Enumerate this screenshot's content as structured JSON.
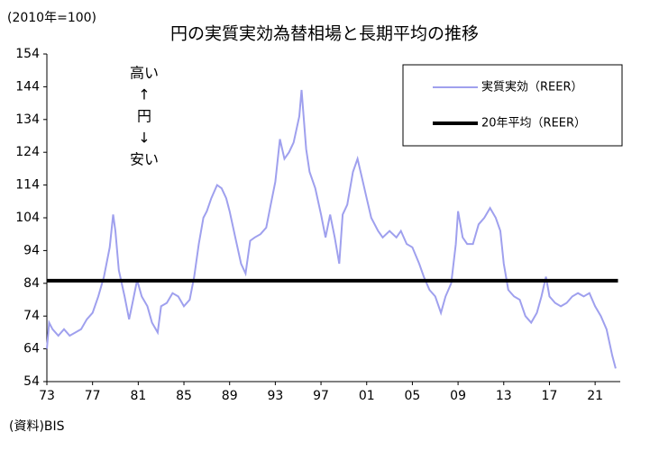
{
  "chart_data": {
    "type": "line",
    "title": "円の実質実効為替相場と長期平均の推移",
    "subtitle": "(2010年=100)",
    "source": "(資料)BIS",
    "annotations": [
      "高い",
      "↑",
      "円",
      "↓",
      "安い"
    ],
    "legend": "upper right",
    "xlim": [
      1973,
      2023.2
    ],
    "xticks": [
      {
        "value": 1973,
        "label": "73"
      },
      {
        "value": 1977,
        "label": "77"
      },
      {
        "value": 1981,
        "label": "81"
      },
      {
        "value": 1985,
        "label": "85"
      },
      {
        "value": 1989,
        "label": "89"
      },
      {
        "value": 1993,
        "label": "93"
      },
      {
        "value": 1997,
        "label": "97"
      },
      {
        "value": 2001,
        "label": "01"
      },
      {
        "value": 2005,
        "label": "05"
      },
      {
        "value": 2009,
        "label": "09"
      },
      {
        "value": 2013,
        "label": "13"
      },
      {
        "value": 2017,
        "label": "17"
      },
      {
        "value": 2021,
        "label": "21"
      }
    ],
    "ylim": [
      54,
      154
    ],
    "yticks": [
      54,
      64,
      74,
      84,
      94,
      104,
      114,
      124,
      134,
      144,
      154
    ],
    "series": [
      {
        "name": "実質実効（REER）",
        "color": "#9fa0ee",
        "width": 2,
        "x": [
          1973.0,
          1973.2,
          1973.5,
          1974,
          1974.5,
          1975,
          1975.5,
          1976,
          1976.5,
          1977,
          1977.5,
          1978,
          1978.5,
          1978.8,
          1979,
          1979.3,
          1979.8,
          1980.2,
          1980.5,
          1980.9,
          1981.3,
          1981.8,
          1982.2,
          1982.7,
          1983,
          1983.5,
          1984,
          1984.5,
          1985,
          1985.5,
          1985.9,
          1986.3,
          1986.7,
          1987,
          1987.4,
          1987.9,
          1988.3,
          1988.7,
          1989,
          1989.5,
          1990,
          1990.4,
          1990.8,
          1991.2,
          1991.7,
          1992.2,
          1992.6,
          1993,
          1993.4,
          1993.8,
          1994.2,
          1994.6,
          1995.1,
          1995.3,
          1995.7,
          1996,
          1996.5,
          1997,
          1997.4,
          1997.8,
          1998.2,
          1998.6,
          1998.9,
          1999.3,
          1999.8,
          2000.2,
          2000.6,
          2001,
          2001.4,
          2002,
          2002.4,
          2003,
          2003.6,
          2004,
          2004.5,
          2005,
          2005.6,
          2006,
          2006.5,
          2007,
          2007.5,
          2007.9,
          2008.4,
          2008.8,
          2009,
          2009.4,
          2009.8,
          2010.3,
          2010.8,
          2011.3,
          2011.8,
          2012.3,
          2012.7,
          2013,
          2013.4,
          2013.9,
          2014.4,
          2014.9,
          2015.4,
          2015.9,
          2016.3,
          2016.7,
          2017,
          2017.5,
          2018,
          2018.5,
          2019,
          2019.5,
          2020,
          2020.5,
          2021,
          2021.5,
          2022,
          2022.5,
          2022.8
        ],
        "values": [
          64,
          72,
          70,
          68,
          70,
          68,
          69,
          70,
          73,
          75,
          80,
          86,
          95,
          105,
          100,
          88,
          80,
          73,
          78,
          85,
          80,
          77,
          72,
          69,
          77,
          78,
          81,
          80,
          77,
          79,
          86,
          96,
          104,
          106,
          110,
          114,
          113,
          110,
          106,
          98,
          90,
          87,
          97,
          98,
          99,
          101,
          108,
          115,
          128,
          122,
          124,
          127,
          135,
          143,
          125,
          118,
          113,
          105,
          98,
          105,
          98,
          90,
          105,
          108,
          118,
          122,
          116,
          110,
          104,
          100,
          98,
          100,
          98,
          100,
          96,
          95,
          90,
          86,
          82,
          80,
          75,
          80,
          84,
          96,
          106,
          98,
          96,
          96,
          102,
          104,
          107,
          104,
          100,
          90,
          82,
          80,
          79,
          74,
          72,
          75,
          80,
          86,
          80,
          78,
          77,
          78,
          80,
          81,
          80,
          81,
          77,
          74,
          70,
          62,
          58
        ]
      },
      {
        "name": "20年平均（REER）",
        "color": "#000000",
        "width": 4,
        "x": [
          1973,
          2023
        ],
        "values": [
          84.8,
          84.8
        ]
      }
    ]
  }
}
